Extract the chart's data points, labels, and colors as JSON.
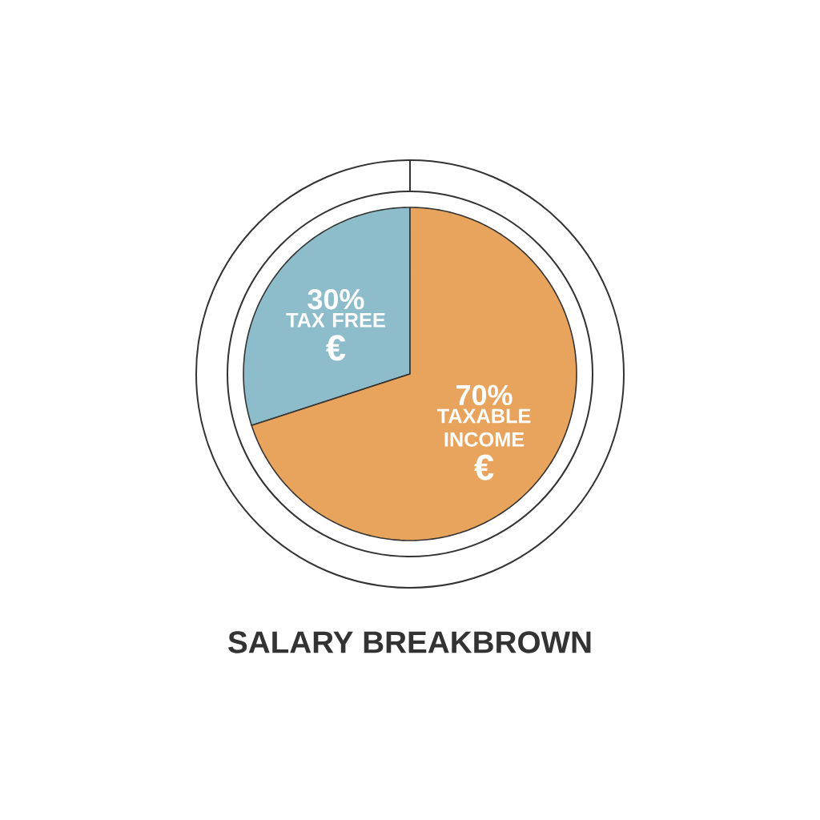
{
  "chart_data": {
    "type": "pie",
    "title": "SALARY BREAKBROWN",
    "categories": [
      "TAX FREE",
      "TAXABLE INCOME"
    ],
    "values": [
      30,
      70
    ],
    "colors": [
      "#8dbccb",
      "#e8a35c"
    ],
    "value_labels": [
      "30%",
      "70%"
    ],
    "annotations": [
      "€",
      "€"
    ]
  }
}
